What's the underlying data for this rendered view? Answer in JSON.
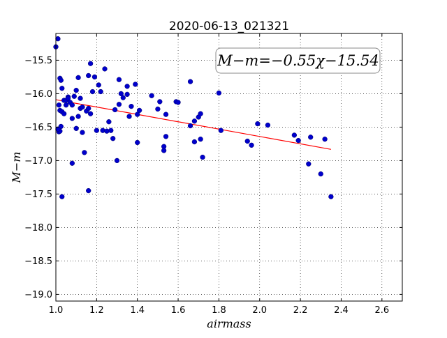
{
  "chart_data": {
    "type": "scatter",
    "title": "2020-06-13_021321",
    "xlabel": "airmass",
    "ylabel": "M−m",
    "xlim": [
      1.0,
      2.7
    ],
    "ylim": [
      -19.1,
      -15.1
    ],
    "y_inverted": true,
    "grid": "dotted",
    "xticks": [
      "1.0",
      "1.2",
      "1.4",
      "1.6",
      "1.8",
      "2.0",
      "2.2",
      "2.4",
      "2.6"
    ],
    "yticks": [
      "−15.5",
      "−16.0",
      "−16.5",
      "−17.0",
      "−17.5",
      "−18.0",
      "−18.5",
      "−19.0"
    ],
    "annotation": "M−m=−0.55χ−15.54",
    "annotation_position": "top-right",
    "fit": {
      "slope": -0.55,
      "intercept": -15.54,
      "x_range": [
        1.0,
        2.35
      ],
      "color": "#ff0000"
    },
    "marker_color": "#0000cc",
    "series": [
      {
        "x": [
          1.0,
          1.01,
          1.015,
          1.02,
          1.015,
          1.025,
          1.03,
          1.02,
          1.025,
          1.04,
          1.03,
          1.05,
          1.06,
          1.05,
          1.04,
          1.06,
          1.07,
          1.08,
          1.09,
          1.1,
          1.11,
          1.08,
          1.1,
          1.12,
          1.13,
          1.14,
          1.12,
          1.11,
          1.13,
          1.16,
          1.17,
          1.15,
          1.17,
          1.18,
          1.16,
          1.19,
          1.21,
          1.2,
          1.22,
          1.23,
          1.24,
          1.25,
          1.26,
          1.27,
          1.28,
          1.29,
          1.3,
          1.31,
          1.32,
          1.31,
          1.33,
          1.35,
          1.36,
          1.35,
          1.37,
          1.39,
          1.4,
          1.41,
          1.4,
          1.47,
          1.5,
          1.51,
          1.53,
          1.53,
          1.54,
          1.54,
          1.59,
          1.6,
          1.66,
          1.66,
          1.68,
          1.68,
          1.7,
          1.71,
          1.71,
          1.72,
          1.8,
          1.81,
          1.94,
          1.96,
          1.99,
          2.04,
          2.17,
          2.19,
          2.24,
          2.25,
          2.3,
          2.32,
          2.35,
          1.08,
          1.16,
          1.03,
          1.02,
          1.01
        ],
        "y": [
          -15.3,
          -15.18,
          -16.57,
          -15.77,
          -16.17,
          -15.8,
          -15.92,
          -16.25,
          -16.49,
          -16.1,
          -16.27,
          -16.1,
          -16.05,
          -16.17,
          -16.3,
          -16.07,
          -16.13,
          -16.37,
          -16.04,
          -15.95,
          -15.76,
          -16.17,
          -16.52,
          -16.22,
          -16.58,
          -16.88,
          -16.07,
          -16.34,
          -16.2,
          -15.73,
          -15.55,
          -16.26,
          -16.3,
          -15.97,
          -16.22,
          -15.75,
          -15.87,
          -16.55,
          -15.97,
          -16.55,
          -15.63,
          -16.56,
          -16.42,
          -16.55,
          -16.67,
          -16.24,
          -17.0,
          -15.79,
          -16.0,
          -16.16,
          -16.06,
          -16.01,
          -16.34,
          -15.89,
          -16.19,
          -15.86,
          -16.31,
          -16.25,
          -16.73,
          -16.03,
          -16.23,
          -16.12,
          -16.79,
          -16.85,
          -16.31,
          -16.64,
          -16.12,
          -16.13,
          -15.82,
          -16.48,
          -16.41,
          -16.72,
          -16.35,
          -16.68,
          -16.3,
          -16.95,
          -15.99,
          -16.55,
          -16.71,
          -16.77,
          -16.45,
          -16.47,
          -16.62,
          -16.7,
          -17.05,
          -16.65,
          -17.2,
          -16.68,
          -17.54,
          -17.04,
          -17.45,
          -17.54,
          -16.56,
          -16.53
        ]
      }
    ]
  }
}
